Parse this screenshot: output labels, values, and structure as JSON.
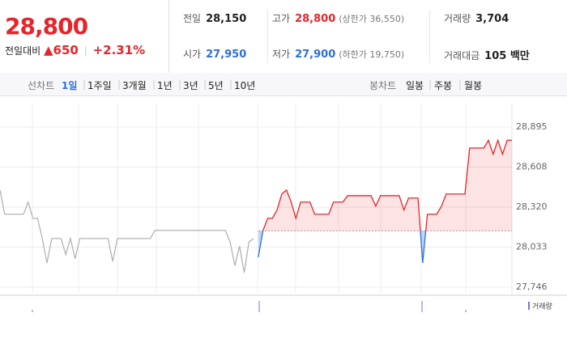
{
  "header": {
    "price": "28,800",
    "change_label": "전일대비",
    "change": "▲650",
    "change_rate": "+2.31%",
    "stats": [
      [
        {
          "label": "전일",
          "value": "28,150"
        },
        {
          "label": "고가",
          "value": "28,800",
          "note": "(상한가 36,550)"
        },
        {
          "label": "거래량",
          "value": "3,704"
        }
      ],
      [
        {
          "label": "시가",
          "value": "27,950"
        },
        {
          "label": "저가",
          "value": "27,900",
          "note": "(하한가 19,750)"
        },
        {
          "label": "거래대금",
          "value": "105 백만"
        }
      ]
    ]
  },
  "tabs": {
    "line_label": "선차트",
    "line_periods": [
      "1일",
      "1주일",
      "3개월",
      "1년",
      "3년",
      "5년",
      "10년"
    ],
    "candle_label": "봉차트",
    "candle_periods": [
      "일봉",
      "주봉",
      "월봉"
    ]
  },
  "chart_data": {
    "type": "line",
    "ylim": [
      27746,
      28895
    ],
    "yticks": [
      {
        "value": 28895,
        "label": "28,895"
      },
      {
        "value": 28608,
        "label": "28,608"
      },
      {
        "value": 28320,
        "label": "28,320"
      },
      {
        "value": 28033,
        "label": "28,033"
      },
      {
        "value": 27746,
        "label": "27,746"
      }
    ],
    "baseline": 28150,
    "grid": true,
    "series": [
      {
        "color": "#b4b4b4",
        "values": [
          28443,
          28269,
          28269,
          28269,
          28269,
          28269,
          28356,
          28240,
          28240,
          28095,
          27920,
          28095,
          28095,
          28095,
          27980,
          28095,
          27950,
          28095,
          28095,
          28095,
          28095,
          28095,
          28095,
          28095,
          27930,
          28095,
          28095,
          28095,
          28095,
          28095,
          28095,
          28095,
          28095,
          28153,
          28153,
          28153,
          28153,
          28153,
          28153,
          28153,
          28153,
          28153,
          28153,
          28153,
          28153,
          28153,
          28153,
          28153,
          28153,
          28070,
          27900,
          28040,
          27850,
          28070,
          28095,
          null,
          null,
          null,
          null,
          null,
          null,
          null,
          null,
          null,
          null,
          null,
          null,
          null,
          null,
          null,
          null,
          null,
          null,
          null,
          null,
          null,
          null,
          null,
          null,
          null,
          null,
          null,
          null,
          null,
          null,
          null,
          null,
          null,
          null,
          null,
          null,
          null,
          null,
          null,
          null,
          null,
          null,
          null,
          null,
          null,
          null,
          null,
          null,
          null,
          null,
          null,
          null,
          null,
          null,
          null
        ]
      },
      {
        "color": "#e4262c",
        "color_down": "#2f6fd8",
        "values": [
          null,
          null,
          null,
          null,
          null,
          null,
          null,
          null,
          null,
          null,
          null,
          null,
          null,
          null,
          null,
          null,
          null,
          null,
          null,
          null,
          null,
          null,
          null,
          null,
          null,
          null,
          null,
          null,
          null,
          null,
          null,
          null,
          null,
          null,
          null,
          null,
          null,
          null,
          null,
          null,
          null,
          null,
          null,
          null,
          null,
          null,
          null,
          null,
          null,
          null,
          null,
          null,
          null,
          null,
          null,
          27961,
          28153,
          28240,
          28240,
          28300,
          28414,
          28443,
          28356,
          28240,
          28356,
          28356,
          28356,
          28269,
          28269,
          28269,
          28269,
          28356,
          28356,
          28356,
          28402,
          28402,
          28402,
          28402,
          28402,
          28402,
          28327,
          28402,
          28402,
          28402,
          28402,
          28402,
          28300,
          28385,
          28385,
          28385,
          27920,
          28269,
          28269,
          28269,
          28327,
          28414,
          28414,
          28414,
          28414,
          28414,
          28744,
          28744,
          28744,
          28744,
          28800,
          28700,
          28800,
          28700,
          28800,
          28800
        ]
      }
    ],
    "volume_label": "거래량",
    "volume_color": "#8a6fc9"
  }
}
